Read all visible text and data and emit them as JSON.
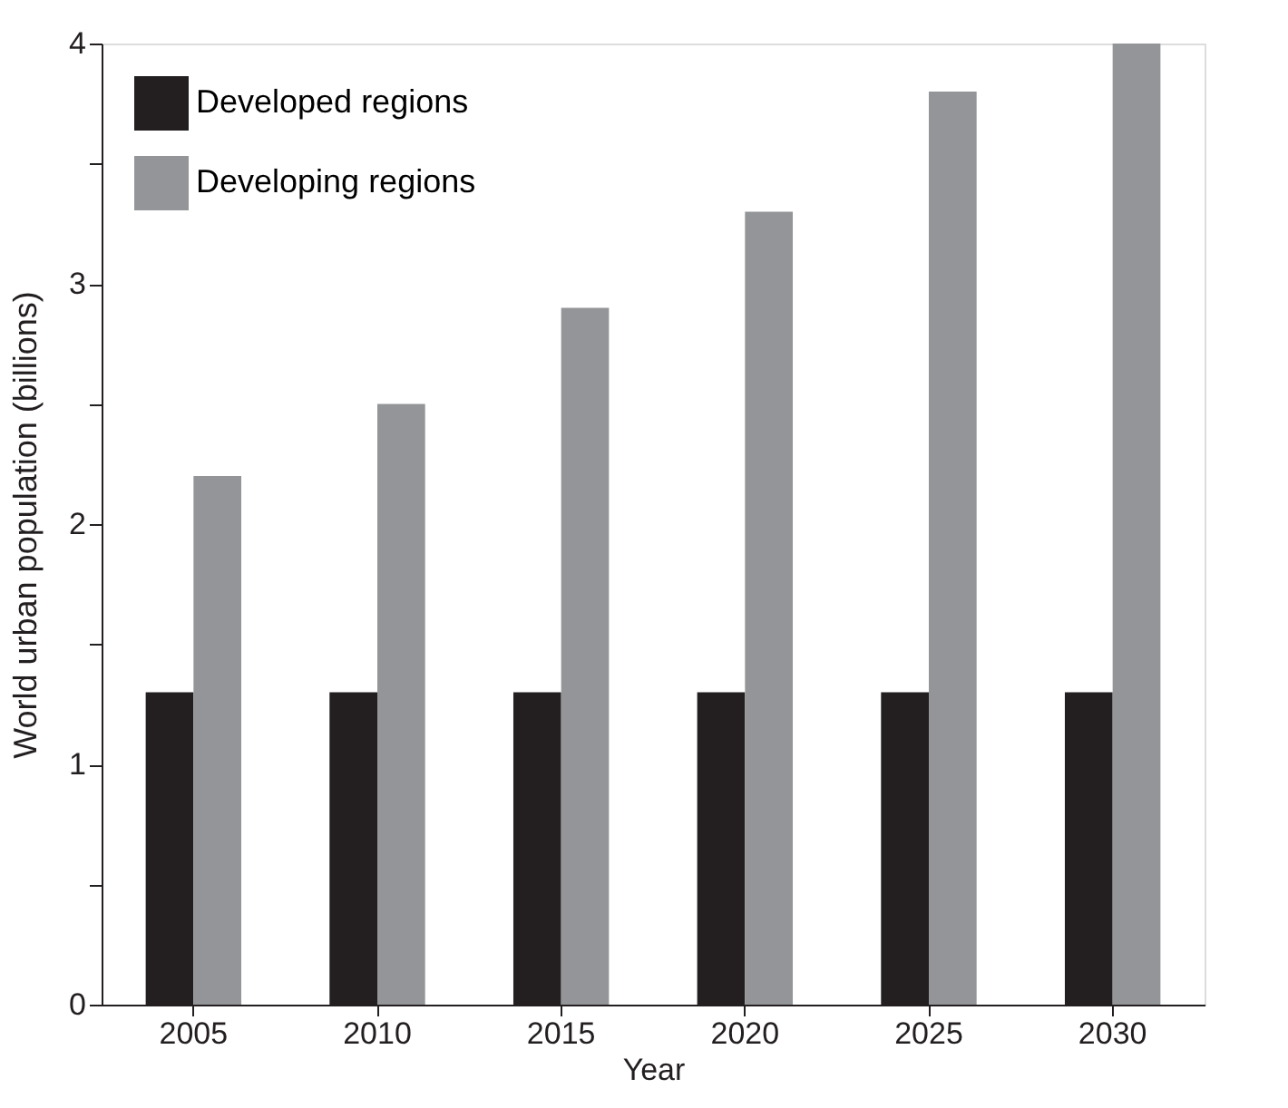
{
  "chart_data": {
    "type": "bar",
    "xlabel": "Year",
    "ylabel": "World urban population (billions)",
    "categories": [
      "2005",
      "2010",
      "2015",
      "2020",
      "2025",
      "2030"
    ],
    "series": [
      {
        "name": "Developed regions",
        "color": "#231f20",
        "values": [
          1.3,
          1.3,
          1.3,
          1.3,
          1.3,
          1.3
        ]
      },
      {
        "name": "Developing regions",
        "color": "#939598",
        "values": [
          2.2,
          2.5,
          2.9,
          3.3,
          3.8,
          4.0
        ]
      }
    ],
    "ylim": [
      0,
      4
    ],
    "yticks": [
      0,
      {
        "value": 0.5,
        "label": null
      },
      1,
      {
        "value": 1.5,
        "label": null
      },
      2,
      {
        "value": 2.5,
        "label": null
      },
      3,
      {
        "value": 3.5,
        "label": null
      },
      4
    ],
    "grid": false,
    "legend": "top left"
  }
}
